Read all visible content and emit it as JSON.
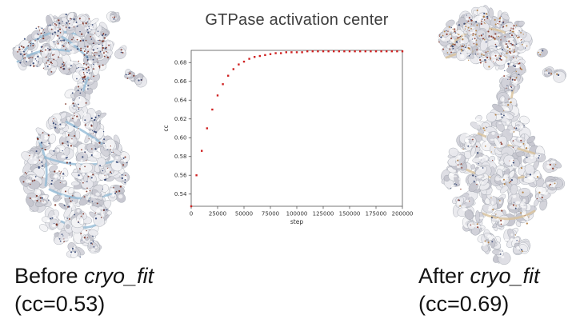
{
  "page": {
    "background": "#ffffff"
  },
  "panels": {
    "before": {
      "label_prefix": "Before ",
      "program_name": "cryo_fit",
      "cc_label": "(cc=0.53)"
    },
    "after": {
      "label_prefix": "After ",
      "program_name": "cryo_fit",
      "cc_label": "(cc=0.69)"
    }
  },
  "molecules": {
    "before": {
      "surface": "#dfdfe6",
      "ribbon": "#92bad6",
      "atom_colors": [
        "#2e4070",
        "#7a2d20"
      ]
    },
    "after": {
      "surface": "#dfdfe6",
      "ribbon": "#d9c29a",
      "atom_colors": [
        "#31436f",
        "#8a3525",
        "#b07a3a"
      ]
    }
  },
  "chart_data": {
    "type": "scatter",
    "title": "GTPase activation center",
    "xlabel": "step",
    "ylabel": "cc",
    "xlim": [
      0,
      200000
    ],
    "ylim": [
      0.527,
      0.693
    ],
    "xticks": [
      0,
      25000,
      50000,
      75000,
      100000,
      125000,
      150000,
      175000,
      200000
    ],
    "yticks": [
      0.54,
      0.56,
      0.58,
      0.6,
      0.62,
      0.64,
      0.66,
      0.68
    ],
    "grid": false,
    "legend": "none",
    "marker_color": "#cf2121",
    "frame_color": "#555555",
    "tick_label_color": "#333333",
    "x": [
      0,
      5000,
      10000,
      15000,
      20000,
      25000,
      30000,
      35000,
      40000,
      45000,
      50000,
      55000,
      60000,
      65000,
      70000,
      75000,
      80000,
      85000,
      90000,
      95000,
      100000,
      105000,
      110000,
      115000,
      120000,
      125000,
      130000,
      135000,
      140000,
      145000,
      150000,
      155000,
      160000,
      165000,
      170000,
      175000,
      180000,
      185000,
      190000,
      195000,
      200000
    ],
    "y": [
      0.527,
      0.56,
      0.586,
      0.61,
      0.63,
      0.645,
      0.657,
      0.666,
      0.673,
      0.678,
      0.681,
      0.684,
      0.686,
      0.687,
      0.688,
      0.689,
      0.69,
      0.69,
      0.691,
      0.691,
      0.691,
      0.691,
      0.692,
      0.692,
      0.692,
      0.692,
      0.692,
      0.692,
      0.692,
      0.692,
      0.692,
      0.692,
      0.692,
      0.692,
      0.692,
      0.692,
      0.692,
      0.692,
      0.692,
      0.692,
      0.692
    ]
  }
}
